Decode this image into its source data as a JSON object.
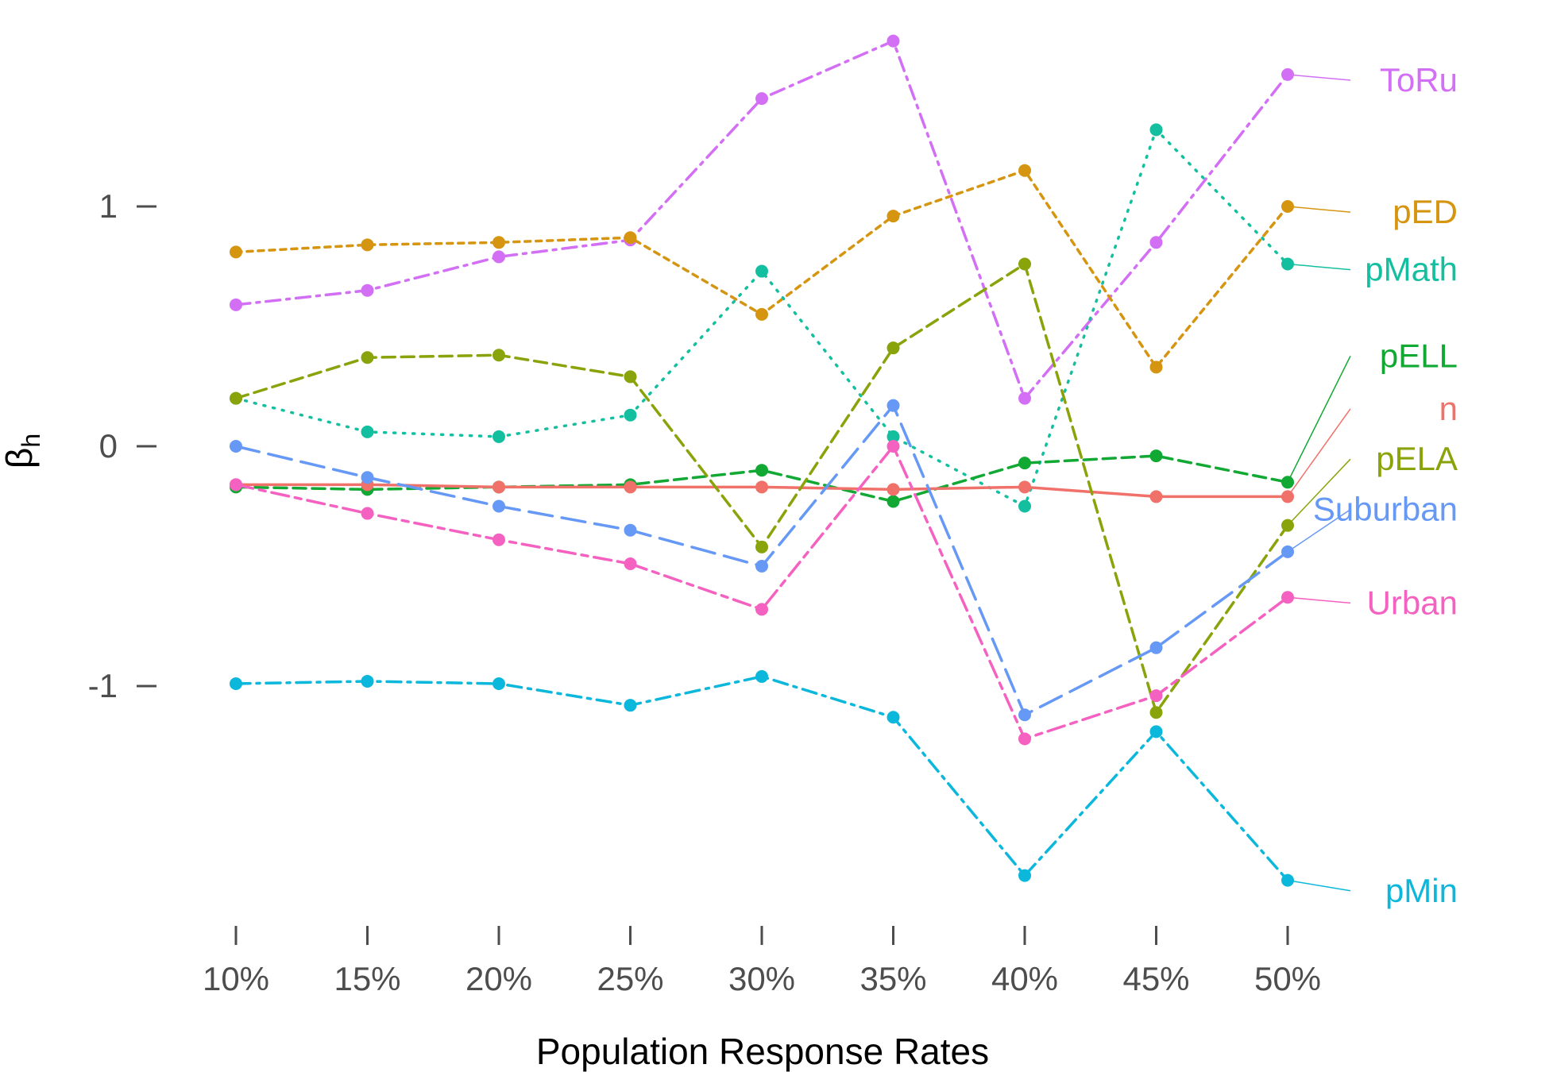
{
  "chart_data": {
    "type": "line",
    "xlabel": "Population Response Rates",
    "ylabel": "β",
    "ylabel_sub": "h",
    "categories": [
      "10%",
      "15%",
      "20%",
      "25%",
      "30%",
      "35%",
      "40%",
      "45%",
      "50%"
    ],
    "yticks": [
      {
        "value": 1,
        "label": "1"
      },
      {
        "value": 0,
        "label": "0"
      },
      {
        "value": -1,
        "label": "-1"
      }
    ],
    "ylim": [
      -1.95,
      1.75
    ],
    "grid": false,
    "legend": "direct labels at right",
    "series": [
      {
        "name": "ToRu",
        "color": "#D36FF5",
        "dash": "dashdot",
        "label_y": 1.48,
        "values": [
          0.59,
          0.65,
          0.79,
          0.86,
          1.45,
          1.69,
          0.2,
          0.85,
          1.55
        ]
      },
      {
        "name": "pED",
        "color": "#D59510",
        "dash": "dotted",
        "label_y": 0.93,
        "values": [
          0.81,
          0.84,
          0.85,
          0.87,
          0.55,
          0.96,
          1.15,
          0.33,
          1.0
        ]
      },
      {
        "name": "pMath",
        "color": "#14BFA0",
        "dash": "dot",
        "label_y": 0.69,
        "values": [
          0.2,
          0.06,
          0.04,
          0.13,
          0.73,
          0.04,
          -0.25,
          1.32,
          0.76
        ]
      },
      {
        "name": "pELL",
        "color": "#11A833",
        "dash": "dashed",
        "label_y": 0.33,
        "values": [
          -0.17,
          -0.18,
          -0.17,
          -0.16,
          -0.1,
          -0.23,
          -0.07,
          -0.04,
          -0.15
        ]
      },
      {
        "name": "n",
        "color": "#F0716A",
        "dash": "solid",
        "label_y": 0.11,
        "values": [
          -0.16,
          -0.16,
          -0.17,
          -0.17,
          -0.17,
          -0.18,
          -0.17,
          -0.21,
          -0.21
        ]
      },
      {
        "name": "pELA",
        "color": "#89A30A",
        "dash": "dashed",
        "label_y": -0.1,
        "values": [
          0.2,
          0.37,
          0.38,
          0.29,
          -0.42,
          0.41,
          0.76,
          -1.11,
          -0.33
        ]
      },
      {
        "name": "Suburban",
        "color": "#6698F5",
        "dash": "longdash",
        "label_y": -0.31,
        "values": [
          0.0,
          -0.13,
          -0.25,
          -0.35,
          -0.5,
          0.17,
          -1.12,
          -0.84,
          -0.44
        ]
      },
      {
        "name": "Urban",
        "color": "#F561C0",
        "dash": "twodash",
        "label_y": -0.7,
        "values": [
          -0.16,
          -0.28,
          -0.39,
          -0.49,
          -0.68,
          0.0,
          -1.22,
          -1.04,
          -0.63
        ]
      },
      {
        "name": "pMin",
        "color": "#0CB7DC",
        "dash": "dashdot",
        "label_y": -1.9,
        "values": [
          -0.99,
          -0.98,
          -0.99,
          -1.08,
          -0.96,
          -1.13,
          -1.79,
          -1.19,
          -1.81
        ]
      }
    ]
  }
}
